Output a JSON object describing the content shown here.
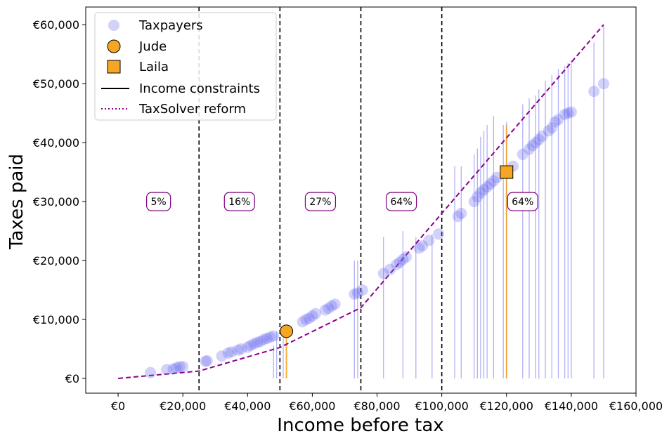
{
  "chart_data": {
    "type": "scatter",
    "xlabel": "Income before tax",
    "ylabel": "Taxes paid",
    "xlim": [
      -10000,
      160000
    ],
    "ylim": [
      -2500,
      63000
    ],
    "x_ticks": [
      0,
      20000,
      40000,
      60000,
      80000,
      100000,
      120000,
      140000,
      160000
    ],
    "x_tick_labels": [
      "€0",
      "€20,000",
      "€40,000",
      "€60,000",
      "€80,000",
      "€100,000",
      "€120,000",
      "€140,000",
      "€160,000"
    ],
    "y_ticks": [
      0,
      10000,
      20000,
      30000,
      40000,
      50000,
      60000
    ],
    "y_tick_labels": [
      "€0",
      "€10,000",
      "€20,000",
      "€30,000",
      "€40,000",
      "€50,000",
      "€60,000"
    ],
    "legend": {
      "position": "top-left",
      "entries": [
        {
          "label": "Taxpayers",
          "marker": "circle",
          "color": "#6666ee"
        },
        {
          "label": "Jude",
          "marker": "circle",
          "color": "#f5a623"
        },
        {
          "label": "Laila",
          "marker": "square",
          "color": "#f5a623"
        },
        {
          "label": "Income constraints",
          "marker": "line",
          "color": "#000000"
        },
        {
          "label": "TaxSolver reform",
          "marker": "dotted-line",
          "color": "#8b008b"
        }
      ]
    },
    "bracket_boundaries": [
      25000,
      50000,
      75000,
      100000
    ],
    "bracket_labels": [
      {
        "label": "5%",
        "x": 12500,
        "y": 30000
      },
      {
        "label": "16%",
        "x": 37500,
        "y": 30000
      },
      {
        "label": "27%",
        "x": 62500,
        "y": 30000
      },
      {
        "label": "64%",
        "x": 87500,
        "y": 30000
      },
      {
        "label": "64%",
        "x": 125000,
        "y": 30000
      }
    ],
    "reform_line": {
      "name": "TaxSolver reform",
      "color": "#8b008b",
      "points": [
        [
          0,
          0
        ],
        [
          25000,
          1250
        ],
        [
          50000,
          5250
        ],
        [
          75000,
          12000
        ],
        [
          100000,
          28000
        ],
        [
          150000,
          60000
        ]
      ]
    },
    "taxpayers": {
      "name": "Taxpayers",
      "color": "#6666ee",
      "points": [
        [
          10000,
          1000
        ],
        [
          15000,
          1500
        ],
        [
          17000,
          1600
        ],
        [
          18000,
          1800
        ],
        [
          19000,
          2000
        ],
        [
          20000,
          2000
        ],
        [
          27000,
          2900
        ],
        [
          27500,
          3000
        ],
        [
          32000,
          3800
        ],
        [
          34000,
          4300
        ],
        [
          35000,
          4500
        ],
        [
          37000,
          4800
        ],
        [
          38000,
          5000
        ],
        [
          40000,
          5300
        ],
        [
          41000,
          5600
        ],
        [
          42000,
          5900
        ],
        [
          43000,
          6100
        ],
        [
          44000,
          6300
        ],
        [
          45000,
          6600
        ],
        [
          46000,
          6800
        ],
        [
          47000,
          7000
        ],
        [
          48000,
          7200
        ],
        [
          57000,
          9600
        ],
        [
          58000,
          10000
        ],
        [
          59000,
          10200
        ],
        [
          60000,
          10600
        ],
        [
          61000,
          11000
        ],
        [
          64000,
          11600
        ],
        [
          65000,
          11900
        ],
        [
          66000,
          12300
        ],
        [
          67000,
          12600
        ],
        [
          73000,
          14300
        ],
        [
          74000,
          14500
        ],
        [
          75500,
          15000
        ],
        [
          82000,
          17800
        ],
        [
          84000,
          18500
        ],
        [
          86000,
          19300
        ],
        [
          87000,
          19700
        ],
        [
          88000,
          20200
        ],
        [
          89000,
          20600
        ],
        [
          93000,
          22100
        ],
        [
          94000,
          22500
        ],
        [
          96000,
          23400
        ],
        [
          99000,
          24500
        ],
        [
          105000,
          27500
        ],
        [
          106000,
          28000
        ],
        [
          110000,
          30000
        ],
        [
          111000,
          30800
        ],
        [
          112000,
          31500
        ],
        [
          113000,
          32000
        ],
        [
          114000,
          32500
        ],
        [
          115000,
          33000
        ],
        [
          116000,
          33500
        ],
        [
          117000,
          34100
        ],
        [
          120000,
          35100
        ],
        [
          122000,
          36000
        ],
        [
          125000,
          38000
        ],
        [
          127000,
          38900
        ],
        [
          128000,
          39500
        ],
        [
          129000,
          40000
        ],
        [
          130000,
          40500
        ],
        [
          131000,
          41100
        ],
        [
          133000,
          42000
        ],
        [
          134000,
          42500
        ],
        [
          135000,
          43500
        ],
        [
          136000,
          43900
        ],
        [
          138000,
          44800
        ],
        [
          139000,
          45000
        ],
        [
          140000,
          45200
        ],
        [
          147000,
          48700
        ],
        [
          150000,
          50000
        ]
      ],
      "constraint_tops": [
        [
          48000,
          5600
        ],
        [
          49000,
          8000
        ],
        [
          51000,
          8000
        ],
        [
          73000,
          20000
        ],
        [
          74000,
          20000
        ],
        [
          82000,
          24000
        ],
        [
          88000,
          25000
        ],
        [
          92000,
          24000
        ],
        [
          97000,
          24500
        ],
        [
          104000,
          36000
        ],
        [
          106000,
          36000
        ],
        [
          110000,
          38000
        ],
        [
          111000,
          39000
        ],
        [
          112000,
          41000
        ],
        [
          113000,
          42000
        ],
        [
          114000,
          43000
        ],
        [
          116000,
          44500
        ],
        [
          119000,
          43000
        ],
        [
          120000,
          43500
        ],
        [
          125000,
          46500
        ],
        [
          127000,
          47500
        ],
        [
          129000,
          48000
        ],
        [
          130000,
          49000
        ],
        [
          132000,
          50500
        ],
        [
          134000,
          51500
        ],
        [
          136000,
          52500
        ],
        [
          138000,
          53000
        ],
        [
          139000,
          53500
        ],
        [
          140000,
          54000
        ],
        [
          147000,
          57000
        ],
        [
          150000,
          60000
        ]
      ]
    },
    "highlighted": [
      {
        "name": "Jude",
        "marker": "circle",
        "color": "#f5a623",
        "x": 52000,
        "y": 8000
      },
      {
        "name": "Laila",
        "marker": "square",
        "color": "#f5a623",
        "x": 120000,
        "y": 35000
      }
    ]
  }
}
